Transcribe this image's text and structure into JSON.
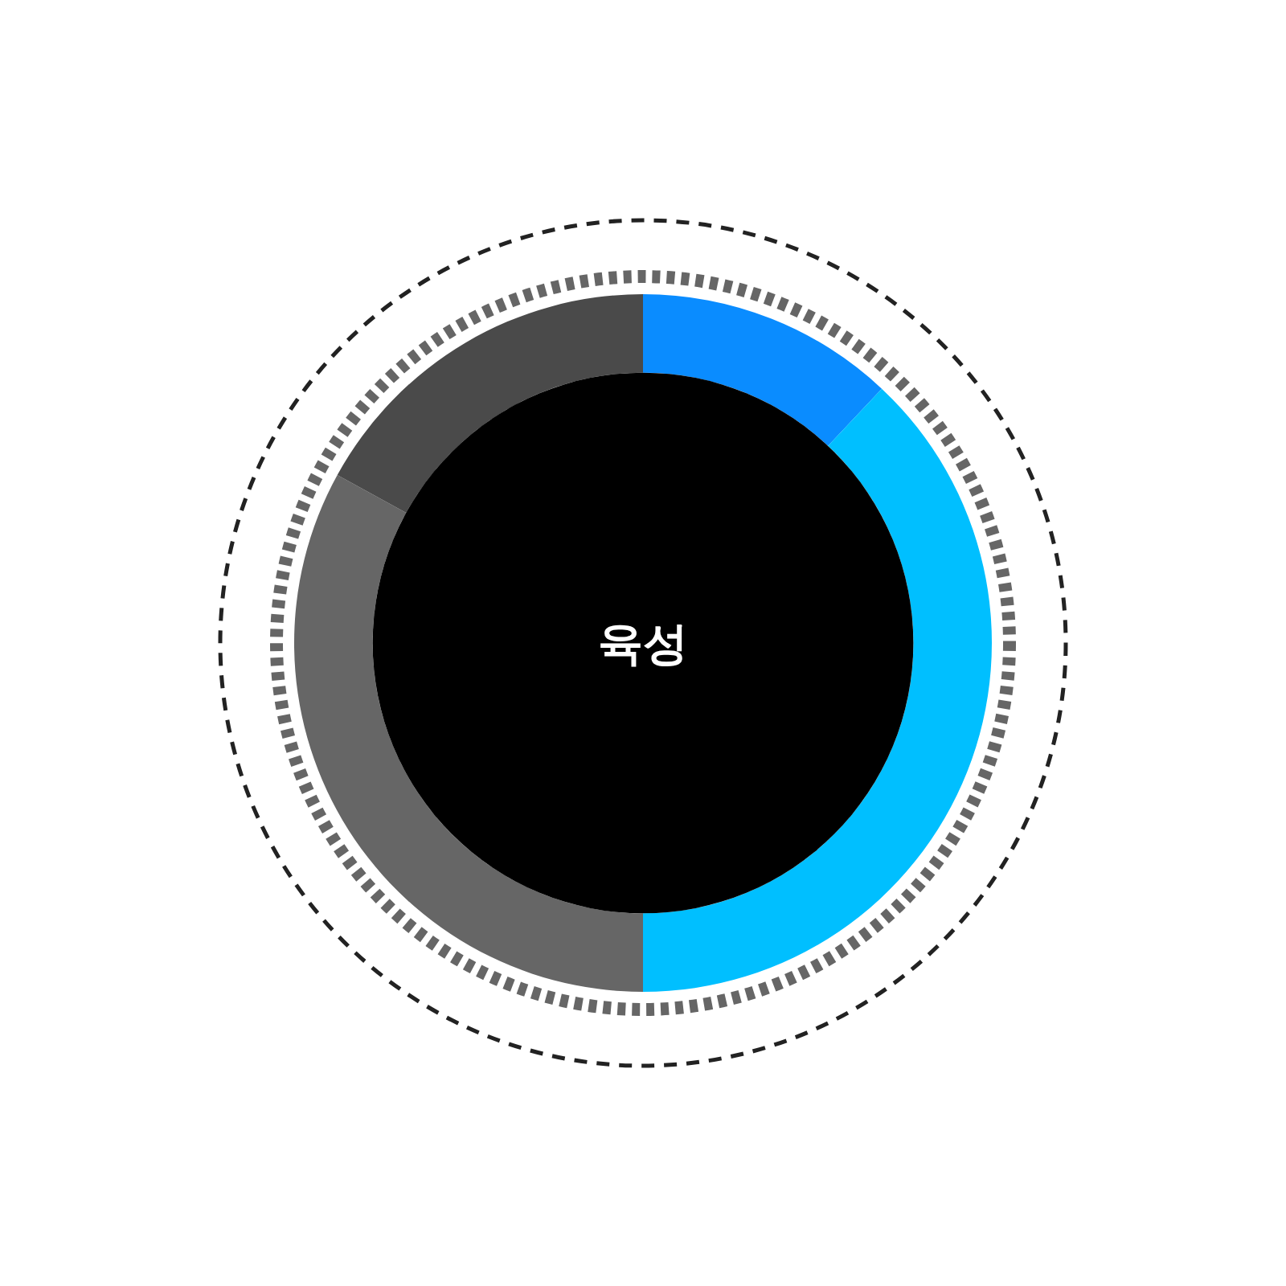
{
  "chart_data": {
    "type": "donut",
    "title": "육성",
    "categories": [
      null,
      null,
      null,
      null
    ],
    "values": [
      12,
      38,
      33,
      17
    ],
    "colors": [
      "#0a8cff",
      "#00bfff",
      "#666666",
      "#4a4a4a"
    ]
  }
}
